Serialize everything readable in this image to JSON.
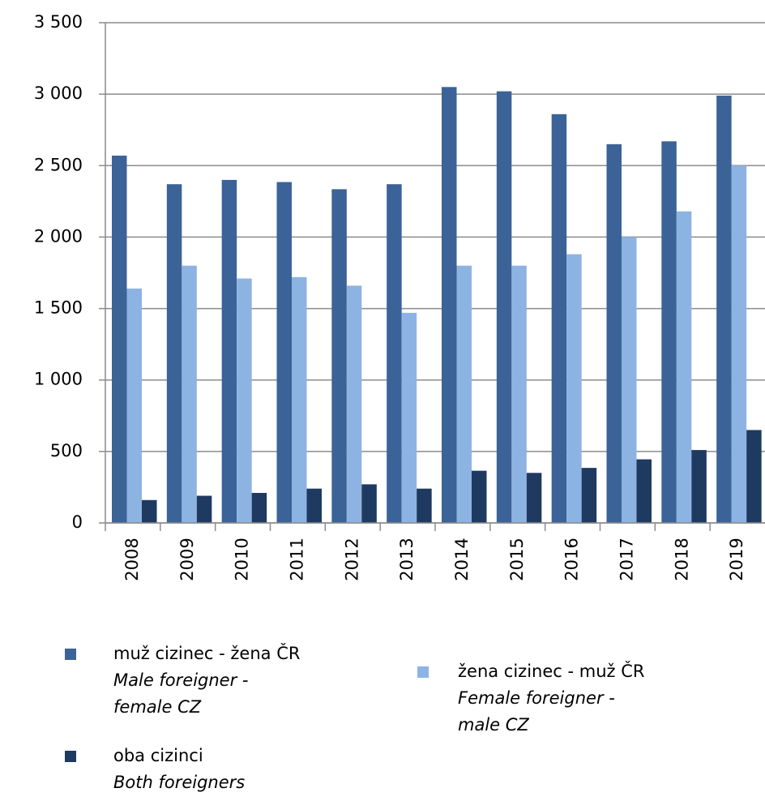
{
  "chart_data": {
    "type": "bar",
    "categories": [
      "2008",
      "2009",
      "2010",
      "2011",
      "2012",
      "2013",
      "2014",
      "2015",
      "2016",
      "2017",
      "2018",
      "2019"
    ],
    "series": [
      {
        "name": "muž cizinec - žena ČR",
        "name_en": "Male foreigner - female CZ",
        "color": "#3b6398",
        "values": [
          2570,
          2370,
          2400,
          2385,
          2335,
          2370,
          3050,
          3020,
          2860,
          2650,
          2670,
          2990
        ]
      },
      {
        "name": "žena cizinec - muž ČR",
        "name_en": "Female foreigner - male CZ",
        "color": "#8db3e2",
        "values": [
          1640,
          1800,
          1710,
          1720,
          1660,
          1470,
          1800,
          1800,
          1880,
          2000,
          2180,
          2500
        ]
      },
      {
        "name": "oba cizinci",
        "name_en": "Both foreigners",
        "color": "#1f3a60",
        "values": [
          160,
          190,
          210,
          240,
          270,
          240,
          365,
          350,
          385,
          445,
          510,
          650
        ]
      }
    ],
    "ylim": [
      0,
      3500
    ],
    "yticks": [
      0,
      500,
      {
        "value": 1000,
        "label": "1 000"
      },
      {
        "value": 1500,
        "label": "1 500"
      },
      {
        "value": 2000,
        "label": "2 000"
      },
      {
        "value": 2500,
        "label": "2 500"
      },
      {
        "value": 3000,
        "label": "3 000"
      },
      {
        "value": 3500,
        "label": "3 500"
      }
    ],
    "grid": true
  }
}
